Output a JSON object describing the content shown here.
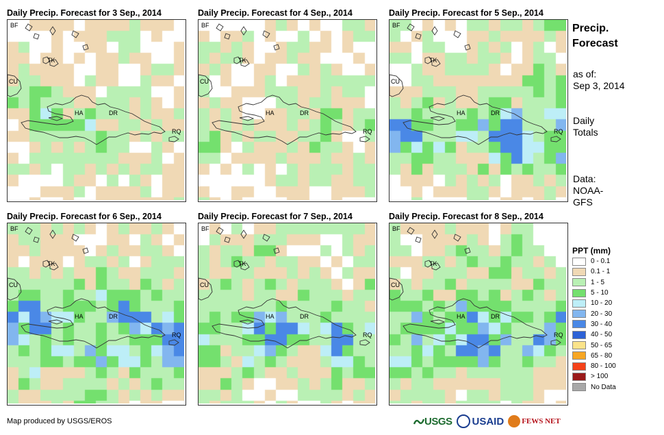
{
  "panels": [
    {
      "title": "Daily Precip. Forecast for 3 Sep., 2014",
      "seed": 11,
      "wet": 0.35
    },
    {
      "title": "Daily Precip. Forecast for 4 Sep., 2014",
      "seed": 23,
      "wet": 0.32
    },
    {
      "title": "Daily Precip. Forecast for 5 Sep., 2014",
      "seed": 37,
      "wet": 0.55
    },
    {
      "title": "Daily Precip. Forecast for 6 Sep., 2014",
      "seed": 41,
      "wet": 0.62
    },
    {
      "title": "Daily Precip. Forecast for 7 Sep., 2014",
      "seed": 53,
      "wet": 0.58
    },
    {
      "title": "Daily Precip. Forecast for 8 Sep., 2014",
      "seed": 67,
      "wet": 0.6
    }
  ],
  "map_labels": {
    "bf": "BF",
    "cu": "CU",
    "tk": "TK",
    "ha": "HA",
    "dr": "DR",
    "rq": "RQ"
  },
  "side": {
    "title_line1": "Precip.",
    "title_line2": "Forecast",
    "asof_line1": "as of:",
    "asof_line2": "Sep 3, 2014",
    "totals_line1": "Daily",
    "totals_line2": "Totals",
    "data_line1": "Data:",
    "data_line2": "NOAA-",
    "data_line3": "GFS"
  },
  "legend": {
    "title": "PPT (mm)",
    "items": [
      {
        "label": "0 - 0.1",
        "color": "#ffffff"
      },
      {
        "label": "0.1 - 1",
        "color": "#f0d9b5"
      },
      {
        "label": "1 - 5",
        "color": "#b9f0b4"
      },
      {
        "label": "5 - 10",
        "color": "#74e06e"
      },
      {
        "label": "10 - 20",
        "color": "#bdeef7"
      },
      {
        "label": "20 - 30",
        "color": "#82b6ef"
      },
      {
        "label": "30 - 40",
        "color": "#4a88e6"
      },
      {
        "label": "40 - 50",
        "color": "#2d62d6"
      },
      {
        "label": "50 - 65",
        "color": "#fbe38a"
      },
      {
        "label": "65 - 80",
        "color": "#f7a623"
      },
      {
        "label": "80 - 100",
        "color": "#f5421a"
      },
      {
        "label": "> 100",
        "color": "#9a1a1a"
      },
      {
        "label": "No Data",
        "color": "#a8a8a8"
      }
    ]
  },
  "footer": {
    "credit": "Map produced by USGS/EROS",
    "usgs": "USGS",
    "usaid": "USAID",
    "fews": "FEWS NET"
  }
}
